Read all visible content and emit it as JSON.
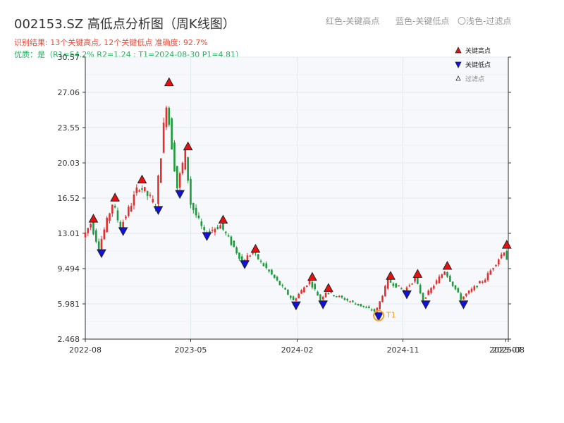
{
  "header": {
    "title": "002153.SZ 高低点分析图（周K线图）",
    "result_text": "识别结果: 13个关键高点, 12个关键低点  准确度: 92.7%",
    "quality_text": "优质：是（R1=54.2%  R2=1.24 ; T1=2024-08-30 P1=4.81）",
    "legend_red": "红色-关键高点",
    "legend_blue": "蓝色-关键低点",
    "legend_light": "〇浅色-过滤点"
  },
  "colors": {
    "up": "#e03030",
    "down": "#1e9b3c",
    "high_marker": "#e81010",
    "low_marker": "#1010e0",
    "t1": "#f0a030",
    "grid": "#e4e8ee",
    "plot_bg": "#f6f8fb"
  },
  "chart_data": {
    "type": "candlestick",
    "title": "002153.SZ 高低点分析图（周K线图）",
    "ylim": [
      2.468,
      30.57
    ],
    "y_ticks": [
      "2.468",
      "5.981",
      "9.494",
      "13.01",
      "16.52",
      "20.03",
      "23.55",
      "27.06",
      "30.57"
    ],
    "x_ticks": [
      "2022-08",
      "2023-05",
      "2024-02",
      "2024-11",
      "2025-07",
      "2025-08"
    ],
    "x_range": [
      "2022-08-01",
      "2025-08-01"
    ],
    "legend": [
      "关键高点",
      "关键低点",
      "过滤点"
    ],
    "key_highs": [
      {
        "date": "2022-08-22",
        "value": 14.4
      },
      {
        "date": "2022-10-17",
        "value": 16.5
      },
      {
        "date": "2022-12-26",
        "value": 18.3
      },
      {
        "date": "2023-03-06",
        "value": 28.0
      },
      {
        "date": "2023-04-24",
        "value": 21.6
      },
      {
        "date": "2023-07-24",
        "value": 14.3
      },
      {
        "date": "2023-10-16",
        "value": 11.4
      },
      {
        "date": "2024-03-11",
        "value": 8.6
      },
      {
        "date": "2024-04-22",
        "value": 7.5
      },
      {
        "date": "2024-09-30",
        "value": 8.7
      },
      {
        "date": "2024-12-09",
        "value": 8.9
      },
      {
        "date": "2025-02-24",
        "value": 9.7
      },
      {
        "date": "2025-07-28",
        "value": 11.8
      }
    ],
    "key_lows": [
      {
        "date": "2022-09-12",
        "value": 11.1
      },
      {
        "date": "2022-11-07",
        "value": 13.3
      },
      {
        "date": "2023-02-06",
        "value": 15.4
      },
      {
        "date": "2023-04-03",
        "value": 17.0
      },
      {
        "date": "2023-06-12",
        "value": 12.8
      },
      {
        "date": "2023-09-18",
        "value": 10.0
      },
      {
        "date": "2024-01-29",
        "value": 5.9
      },
      {
        "date": "2024-04-08",
        "value": 6.0
      },
      {
        "date": "2024-08-30",
        "value": 4.81
      },
      {
        "date": "2024-11-11",
        "value": 7.0
      },
      {
        "date": "2024-12-30",
        "value": 6.0
      },
      {
        "date": "2025-04-07",
        "value": 6.0
      }
    ],
    "t1_point": {
      "label": "T1",
      "date": "2024-08-30",
      "value": 4.81
    },
    "anchors": [
      [
        "2022-08-01",
        12.6
      ],
      [
        "2022-08-22",
        14.0
      ],
      [
        "2022-09-12",
        11.6
      ],
      [
        "2022-10-17",
        16.0
      ],
      [
        "2022-11-07",
        13.6
      ],
      [
        "2022-12-26",
        17.8
      ],
      [
        "2023-02-06",
        15.8
      ],
      [
        "2023-03-06",
        26.2
      ],
      [
        "2023-04-03",
        17.6
      ],
      [
        "2023-04-24",
        21.0
      ],
      [
        "2023-05-08",
        16.0
      ],
      [
        "2023-06-12",
        13.0
      ],
      [
        "2023-07-24",
        13.8
      ],
      [
        "2023-09-18",
        10.3
      ],
      [
        "2023-10-16",
        11.1
      ],
      [
        "2024-01-29",
        6.3
      ],
      [
        "2024-03-11",
        8.3
      ],
      [
        "2024-04-08",
        6.4
      ],
      [
        "2024-04-22",
        7.2
      ],
      [
        "2024-08-30",
        5.2
      ],
      [
        "2024-09-30",
        8.3
      ],
      [
        "2024-11-11",
        7.3
      ],
      [
        "2024-12-09",
        8.5
      ],
      [
        "2024-12-30",
        6.4
      ],
      [
        "2025-02-24",
        9.3
      ],
      [
        "2025-04-07",
        6.5
      ],
      [
        "2025-06-09",
        8.5
      ],
      [
        "2025-07-28",
        11.3
      ],
      [
        "2025-08-01",
        10.5
      ]
    ]
  }
}
